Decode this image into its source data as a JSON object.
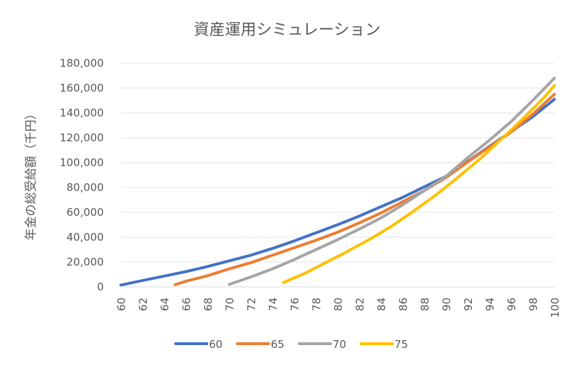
{
  "chart_data": {
    "type": "line",
    "title": "資産運用シミュレーション",
    "xlabel": "",
    "ylabel": "年金の総受給額（千円）",
    "ylim": [
      0,
      180000
    ],
    "yticks": [
      "0",
      "20,000",
      "40,000",
      "60,000",
      "80,000",
      "100,000",
      "120,000",
      "140,000",
      "160,000",
      "180,000"
    ],
    "xlim": [
      60,
      100
    ],
    "xticks": [
      "60",
      "62",
      "64",
      "66",
      "68",
      "70",
      "72",
      "74",
      "76",
      "78",
      "80",
      "82",
      "84",
      "86",
      "88",
      "90",
      "92",
      "94",
      "96",
      "98",
      "100"
    ],
    "grid": true,
    "legend": "bottom",
    "series": [
      {
        "name": "60",
        "color": "#4472C4",
        "x": [
          60,
          62,
          64,
          66,
          68,
          70,
          72,
          74,
          76,
          78,
          80,
          82,
          84,
          86,
          88,
          90,
          92,
          94,
          96,
          98,
          100
        ],
        "values": [
          1500,
          5100,
          8700,
          12300,
          16400,
          21000,
          25500,
          31000,
          37000,
          43500,
          50000,
          57000,
          64500,
          72000,
          80500,
          89000,
          101000,
          113000,
          125000,
          137000,
          151000
        ]
      },
      {
        "name": "65",
        "color": "#ED7D31",
        "x": [
          65,
          66,
          68,
          70,
          72,
          74,
          76,
          78,
          80,
          82,
          84,
          86,
          88,
          90,
          92,
          94,
          96,
          98,
          100
        ],
        "values": [
          1800,
          4500,
          9000,
          14500,
          19500,
          25500,
          31500,
          37500,
          44000,
          51500,
          59500,
          68500,
          77500,
          88000,
          100500,
          112500,
          124500,
          139000,
          155000
        ]
      },
      {
        "name": "70",
        "color": "#A5A5A5",
        "x": [
          70,
          72,
          74,
          76,
          78,
          80,
          82,
          84,
          86,
          88,
          90,
          92,
          94,
          96,
          98,
          100
        ],
        "values": [
          2000,
          8000,
          14500,
          22000,
          30000,
          38000,
          46500,
          55500,
          66000,
          77500,
          89000,
          104000,
          118000,
          133000,
          150000,
          168000
        ]
      },
      {
        "name": "75",
        "color": "#FFC000",
        "x": [
          75,
          77,
          79,
          81,
          83,
          85,
          87,
          89,
          91,
          93,
          95,
          97,
          99,
          100
        ],
        "values": [
          3500,
          11000,
          20000,
          29000,
          38500,
          49000,
          61000,
          73500,
          87500,
          102000,
          118000,
          134500,
          152000,
          162000
        ]
      }
    ]
  }
}
